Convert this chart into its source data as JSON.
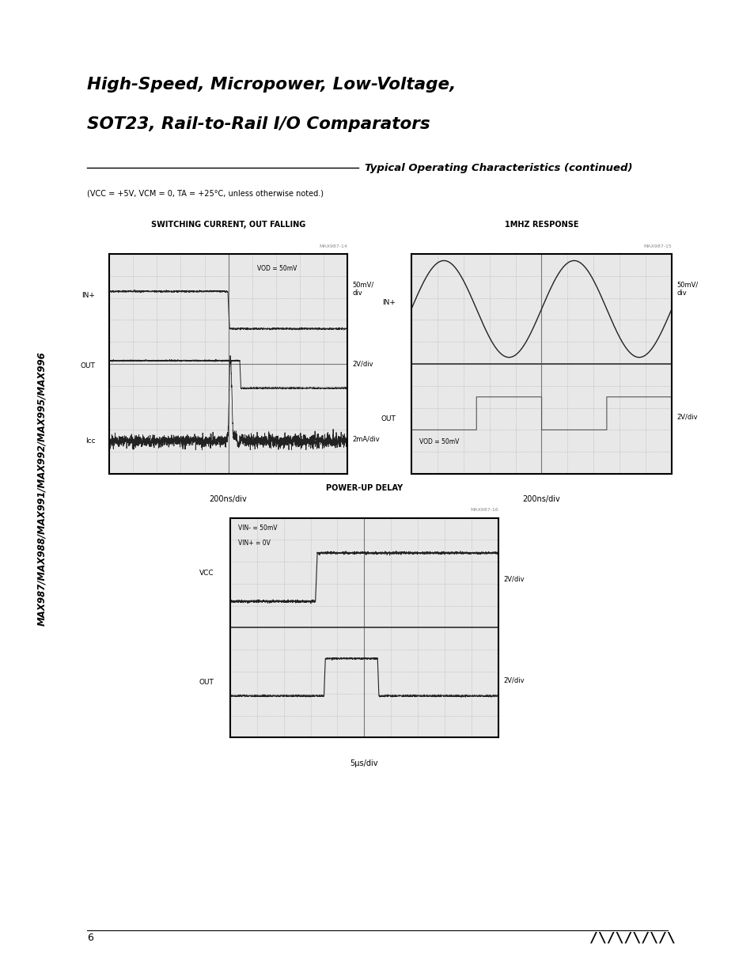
{
  "page_title_line1": "High-Speed, Micropower, Low-Voltage,",
  "page_title_line2": "SOT23, Rail-to-Rail I/O Comparators",
  "section_title": "Typical Operating Characteristics (continued)",
  "condition_text": "(V CC = +5V, V CM = 0, T A = +25°C, unless otherwise noted.)",
  "sidebar_text": "MAX987/MAX988/MAX991/MAX992/MAX995/MAX996",
  "page_number": "6",
  "chart1_title": "SWITCHING CURRENT, OUT FALLING",
  "chart1_label": "MAX987-14",
  "chart1_xlabel": "200ns/div",
  "chart1_annotation1": "VOD = 50mV",
  "chart1_ylabel_in": "IN+",
  "chart1_ylabel_out": "OUT",
  "chart1_ylabel_icc": "Icc",
  "chart1_scale1": "50mV/\ndiv",
  "chart1_scale2": "2V/div",
  "chart1_scale3": "2mA/div",
  "chart2_title": "1MHZ RESPONSE",
  "chart2_label": "MAX987-15",
  "chart2_xlabel": "200ns/div",
  "chart2_annotation1": "VOD = 50mV",
  "chart2_ylabel_in": "IN+",
  "chart2_ylabel_out": "OUT",
  "chart2_scale1": "50mV/\ndiv",
  "chart2_scale2": "2V/div",
  "chart3_title": "POWER-UP DELAY",
  "chart3_label": "MAX987-16",
  "chart3_xlabel": "5μs/div",
  "chart3_annotation1": "VIN- = 50mV",
  "chart3_annotation2": "VIN+ = 0V",
  "chart3_ylabel_vcc": "VCC",
  "chart3_ylabel_out": "OUT",
  "chart3_scale1": "2V/div",
  "chart3_scale2": "2V/div",
  "bg_color": "#ffffff",
  "plot_bg_color": "#e8e8e8",
  "grid_color": "#aaaaaa",
  "line_color": "#222222",
  "text_color": "#000000"
}
